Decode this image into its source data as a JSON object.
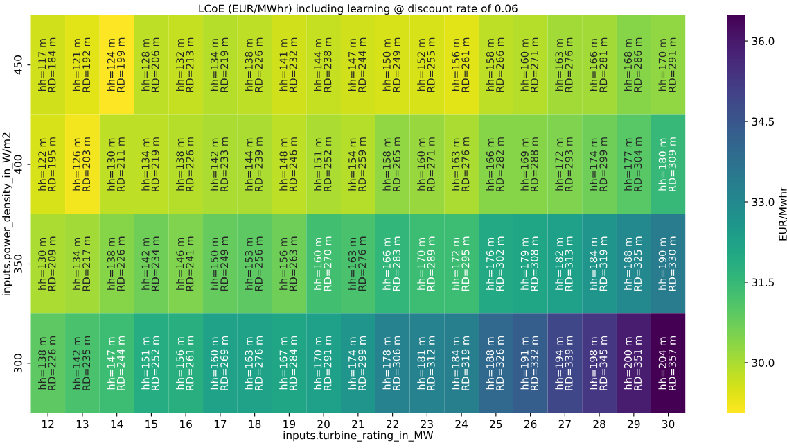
{
  "chart_data": {
    "type": "heatmap",
    "title": "LCoE (EUR/MWhr) including learning @ discount rate of 0.06",
    "xlabel": "inputs.turbine_rating_in_MW",
    "ylabel": "inputs.power_density_in_W/m2",
    "clabel": "EUR/Mwhr",
    "categories": [
      "12",
      "13",
      "14",
      "15",
      "16",
      "17",
      "18",
      "19",
      "20",
      "21",
      "22",
      "23",
      "24",
      "25",
      "26",
      "27",
      "28",
      "29",
      "30"
    ],
    "y_categories": [
      "450",
      "400",
      "350",
      "300"
    ],
    "cells": [
      [
        29.6,
        29.4,
        29.06,
        29.8,
        29.7,
        29.9,
        29.8,
        29.6,
        29.7,
        29.6,
        29.5,
        29.5,
        29.4,
        29.8,
        29.9,
        30.1,
        30.1,
        30.4,
        30.3
      ],
      [
        29.5,
        29.2,
        29.8,
        29.8,
        29.9,
        30.0,
        30.0,
        29.8,
        30.0,
        29.9,
        30.3,
        30.2,
        30.0,
        30.4,
        30.4,
        30.5,
        30.7,
        31.0,
        31.5
      ],
      [
        30.0,
        30.1,
        30.4,
        30.7,
        30.5,
        30.8,
        30.9,
        30.7,
        31.3,
        31.2,
        31.6,
        31.4,
        31.4,
        32.0,
        32.1,
        32.3,
        32.6,
        33.0,
        33.4
      ],
      [
        30.9,
        31.2,
        31.4,
        31.9,
        31.8,
        32.2,
        32.2,
        32.1,
        32.3,
        32.6,
        33.2,
        33.2,
        33.3,
        34.0,
        34.3,
        34.9,
        35.3,
        35.9,
        36.48
      ]
    ],
    "cell_labels": [
      [
        "hh=117 m\nRD=184 m",
        "hh=121 m\nRD=192 m",
        "hh=124 m\nRD=199 m",
        "hh=128 m\nRD=206 m",
        "hh=132 m\nRD=213 m",
        "hh=134 m\nRD=219 m",
        "hh=138 m\nRD=226 m",
        "hh=141 m\nRD=232 m",
        "hh=144 m\nRD=238 m",
        "hh=147 m\nRD=244 m",
        "hh=150 m\nRD=249 m",
        "hh=152 m\nRD=255 m",
        "hh=156 m\nRD=261 m",
        "hh=158 m\nRD=266 m",
        "hh=160 m\nRD=271 m",
        "hh=163 m\nRD=276 m",
        "hh=166 m\nRD=281 m",
        "hh=168 m\nRD=286 m",
        "hh=170 m\nRD=291 m"
      ],
      [
        "hh=122 m\nRD=195 m",
        "hh=126 m\nRD=203 m",
        "hh=130 m\nRD=211 m",
        "hh=134 m\nRD=219 m",
        "hh=138 m\nRD=226 m",
        "hh=142 m\nRD=233 m",
        "hh=144 m\nRD=239 m",
        "hh=148 m\nRD=246 m",
        "hh=151 m\nRD=252 m",
        "hh=154 m\nRD=259 m",
        "hh=158 m\nRD=265 m",
        "hh=160 m\nRD=271 m",
        "hh=163 m\nRD=276 m",
        "hh=166 m\nRD=282 m",
        "hh=169 m\nRD=288 m",
        "hh=172 m\nRD=293 m",
        "hh=174 m\nRD=299 m",
        "hh=177 m\nRD=304 m",
        "hh=180 m\nRD=309 m"
      ],
      [
        "hh=130 m\nRD=209 m",
        "hh=134 m\nRD=217 m",
        "hh=138 m\nRD=226 m",
        "hh=142 m\nRD=234 m",
        "hh=146 m\nRD=241 m",
        "hh=150 m\nRD=249 m",
        "hh=153 m\nRD=256 m",
        "hh=156 m\nRD=263 m",
        "hh=160 m\nRD=270 m",
        "hh=163 m\nRD=276 m",
        "hh=166 m\nRD=283 m",
        "hh=170 m\nRD=289 m",
        "hh=172 m\nRD=295 m",
        "hh=176 m\nRD=302 m",
        "hh=179 m\nRD=308 m",
        "hh=182 m\nRD=313 m",
        "hh=184 m\nRD=319 m",
        "hh=188 m\nRD=325 m",
        "hh=190 m\nRD=330 m"
      ],
      [
        "hh=138 m\nRD=226 m",
        "hh=142 m\nRD=235 m",
        "hh=147 m\nRD=244 m",
        "hh=151 m\nRD=252 m",
        "hh=156 m\nRD=261 m",
        "hh=160 m\nRD=269 m",
        "hh=163 m\nRD=276 m",
        "hh=167 m\nRD=284 m",
        "hh=170 m\nRD=291 m",
        "hh=174 m\nRD=299 m",
        "hh=178 m\nRD=306 m",
        "hh=181 m\nRD=312 m",
        "hh=184 m\nRD=319 m",
        "hh=188 m\nRD=326 m",
        "hh=191 m\nRD=332 m",
        "hh=194 m\nRD=339 m",
        "hh=198 m\nRD=345 m",
        "hh=200 m\nRD=351 m",
        "hh=204 m\nRD=357 m"
      ]
    ],
    "clim": [
      29.06,
      36.48
    ],
    "cticks": [
      {
        "value": 30,
        "label": "30.0"
      },
      {
        "value": 31.5,
        "label": "31.5"
      },
      {
        "value": 33,
        "label": "33.0"
      },
      {
        "value": 34.5,
        "label": "34.5"
      },
      {
        "value": 36,
        "label": "36.0"
      }
    ]
  }
}
